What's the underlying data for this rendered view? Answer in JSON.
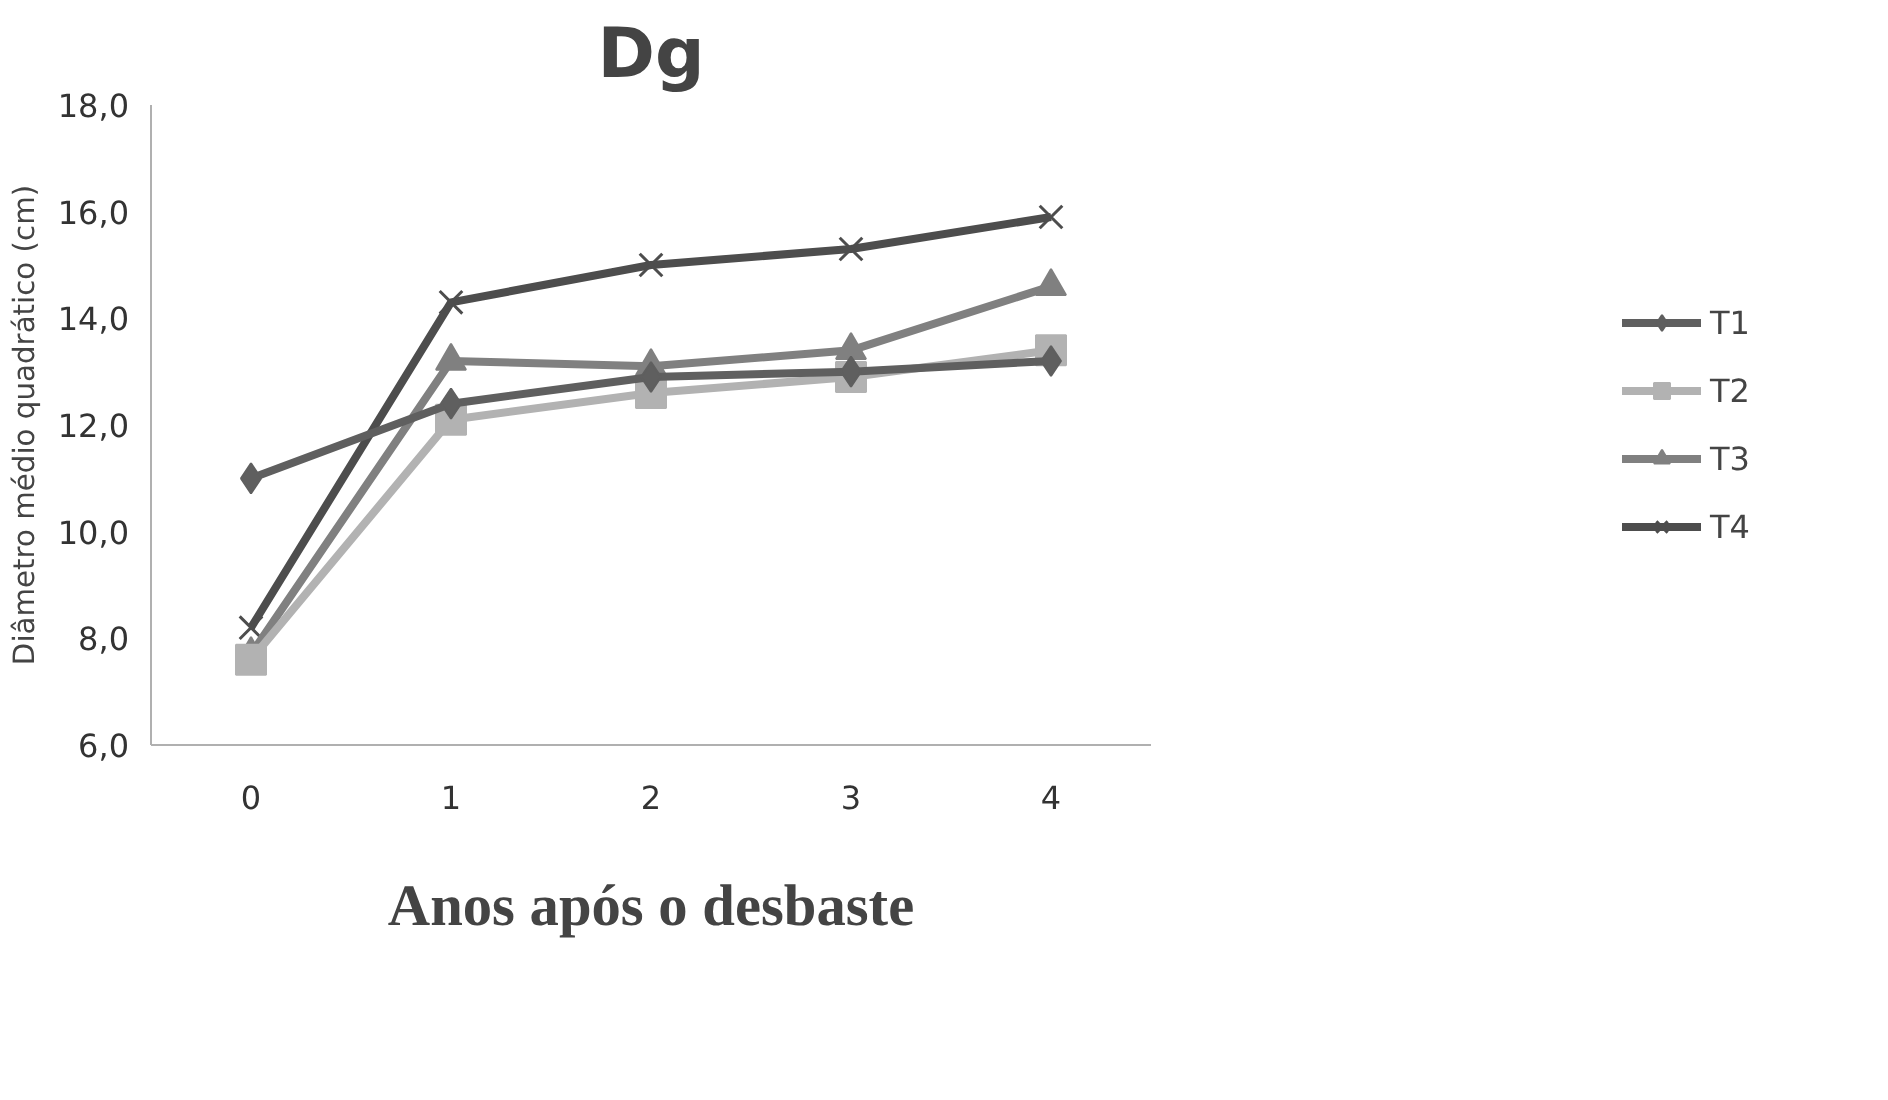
{
  "chart_data": {
    "type": "line",
    "title": "Dg",
    "xlabel": "Anos após o desbaste",
    "ylabel": "Diâmetro médio quadrático (cm)",
    "categories": [
      "0",
      "1",
      "2",
      "3",
      "4"
    ],
    "series": [
      {
        "name": "T1",
        "color": "#5f5f5f",
        "marker": "diamond",
        "values": [
          11.0,
          12.4,
          12.9,
          13.0,
          13.2
        ]
      },
      {
        "name": "T2",
        "color": "#b2b2b2",
        "marker": "square",
        "values": [
          7.6,
          12.1,
          12.6,
          12.9,
          13.4
        ]
      },
      {
        "name": "T3",
        "color": "#808080",
        "marker": "triangle",
        "values": [
          7.7,
          13.2,
          13.1,
          13.4,
          14.6
        ]
      },
      {
        "name": "T4",
        "color": "#4d4d4d",
        "marker": "cross",
        "values": [
          8.2,
          14.3,
          15.0,
          15.3,
          15.9
        ]
      }
    ],
    "ylim": [
      6,
      18
    ],
    "yticks": [
      {
        "value": 6,
        "label": "6,0"
      },
      {
        "value": 8,
        "label": "8,0"
      },
      {
        "value": 10,
        "label": "10,0"
      },
      {
        "value": 12,
        "label": "12,0"
      },
      {
        "value": 14,
        "label": "14,0"
      },
      {
        "value": 16,
        "label": "16,0"
      },
      {
        "value": 18,
        "label": "18,0"
      }
    ],
    "grid": false,
    "legend": "right",
    "line_style": "solid"
  }
}
